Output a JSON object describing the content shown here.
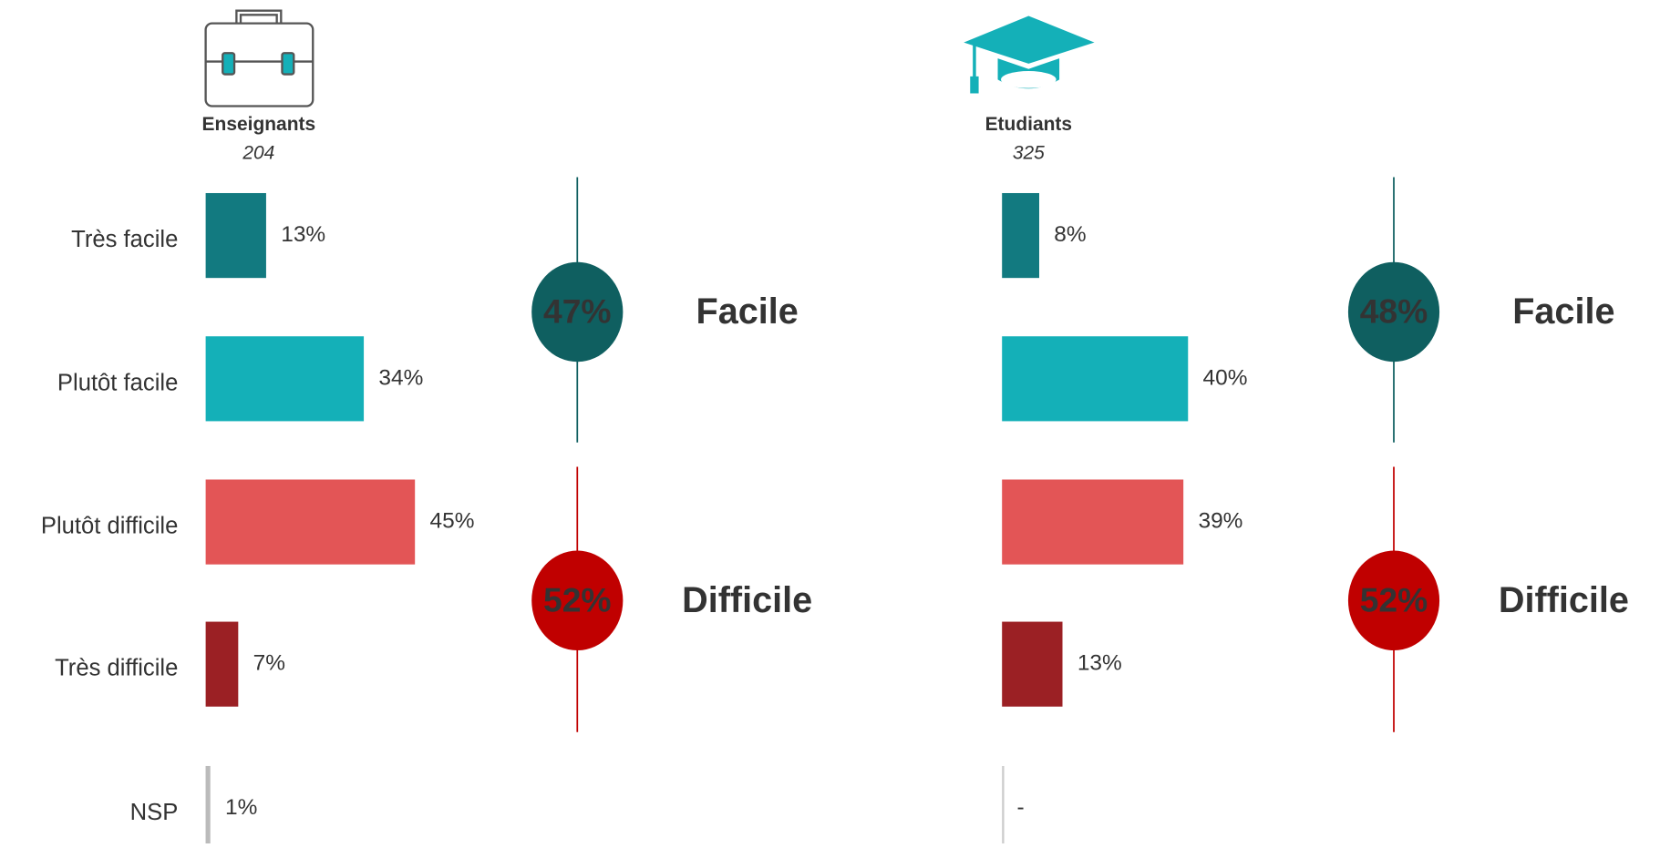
{
  "chart_data": [
    {
      "type": "bar",
      "title": "Enseignants",
      "subtitle": "204",
      "categories": [
        "Très facile",
        "Plutôt facile",
        "Plutôt difficile",
        "Très difficile",
        "NSP"
      ],
      "values": [
        13,
        34,
        45,
        7,
        1
      ],
      "value_labels": [
        "13%",
        "34%",
        "45%",
        "7%",
        "1%"
      ],
      "colors": [
        "#127a80",
        "#14b0b8",
        "#e35556",
        "#9b2024",
        "#bbbbbb"
      ],
      "summary": [
        {
          "label": "Facile",
          "value": 47,
          "value_label": "47%",
          "color": "#0f5f60",
          "text_color": "#0f5f60"
        },
        {
          "label": "Difficile",
          "value": 52,
          "value_label": "52%",
          "color": "#c00000",
          "text_color": "#c00000"
        }
      ]
    },
    {
      "type": "bar",
      "title": "Etudiants",
      "subtitle": "325",
      "values": [
        8,
        40,
        39,
        13,
        null
      ],
      "value_labels": [
        "8%",
        "40%",
        "39%",
        "13%",
        "-"
      ],
      "colors": [
        "#127a80",
        "#14b0b8",
        "#e35556",
        "#9b2024",
        "#bbbbbb"
      ],
      "summary": [
        {
          "label": "Facile",
          "value": 48,
          "value_label": "48%",
          "color": "#0f5f60",
          "text_color": "#0f5f60"
        },
        {
          "label": "Difficile",
          "value": 52,
          "value_label": "52%",
          "color": "#c00000",
          "text_color": "#c00000"
        }
      ]
    }
  ]
}
